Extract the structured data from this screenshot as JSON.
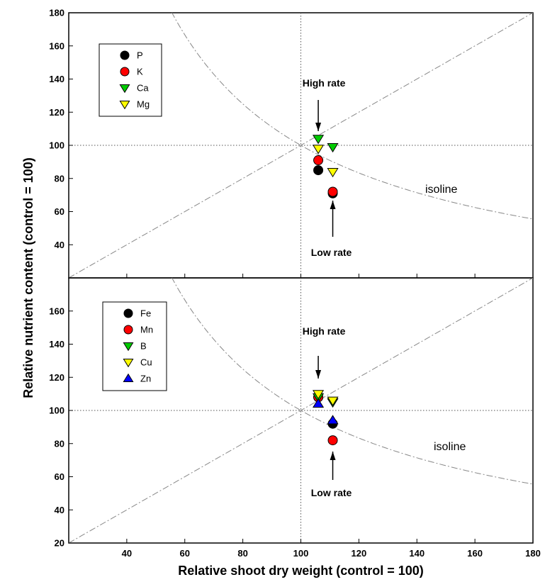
{
  "chart_data": [
    {
      "type": "scatter",
      "title": "",
      "xlabel": "Relative shoot dry weight  (control = 100)",
      "ylabel": "Relative nutrient content (control = 100)",
      "xlim": [
        20,
        180
      ],
      "ylim": [
        20,
        180
      ],
      "yticks": [
        40,
        60,
        80,
        100,
        120,
        140,
        160,
        180
      ],
      "xticks": [
        40,
        60,
        80,
        100,
        120,
        140,
        160,
        180
      ],
      "reference_lines": {
        "x": 100,
        "y": 100
      },
      "legend_position": "top-left",
      "series": [
        {
          "name": "P",
          "marker": "circle",
          "color": "#000000",
          "points": [
            [
              106,
              85
            ],
            [
              111,
              71
            ]
          ]
        },
        {
          "name": "K",
          "marker": "circle",
          "color": "#ff0000",
          "points": [
            [
              106,
              91
            ],
            [
              111,
              72
            ]
          ]
        },
        {
          "name": "Ca",
          "marker": "triangle-down",
          "color": "#00cc00",
          "points": [
            [
              106,
              104
            ],
            [
              111,
              99
            ]
          ]
        },
        {
          "name": "Mg",
          "marker": "triangle-down",
          "color": "#ffff00",
          "points": [
            [
              106,
              98
            ],
            [
              111,
              84
            ]
          ]
        }
      ],
      "annotations": {
        "high_rate": "High rate",
        "low_rate": "Low rate",
        "isoline": "isoline"
      }
    },
    {
      "type": "scatter",
      "title": "",
      "xlabel": "Relative shoot dry weight  (control = 100)",
      "ylabel": "Relative nutrient content (control = 100)",
      "xlim": [
        20,
        180
      ],
      "ylim": [
        20,
        180
      ],
      "yticks": [
        20,
        40,
        60,
        80,
        100,
        120,
        140,
        160
      ],
      "xticks": [
        40,
        60,
        80,
        100,
        120,
        140,
        160,
        180
      ],
      "reference_lines": {
        "x": 100,
        "y": 100
      },
      "legend_position": "top-left",
      "series": [
        {
          "name": "Fe",
          "marker": "circle",
          "color": "#000000",
          "points": [
            [
              106,
              108
            ],
            [
              111,
              92
            ]
          ]
        },
        {
          "name": "Mn",
          "marker": "circle",
          "color": "#ff0000",
          "points": [
            [
              106,
              108
            ],
            [
              111,
              82
            ]
          ]
        },
        {
          "name": "B",
          "marker": "triangle-down",
          "color": "#00cc00",
          "points": [
            [
              106,
              108
            ],
            [
              111,
              105
            ]
          ]
        },
        {
          "name": "Cu",
          "marker": "triangle-down",
          "color": "#ffff00",
          "points": [
            [
              106,
              110
            ],
            [
              111,
              106
            ]
          ]
        },
        {
          "name": "Zn",
          "marker": "triangle-up",
          "color": "#0000ff",
          "points": [
            [
              106,
              104
            ],
            [
              111,
              94
            ]
          ]
        }
      ],
      "annotations": {
        "high_rate": "High rate",
        "low_rate": "Low rate",
        "isoline": "isoline"
      }
    }
  ]
}
